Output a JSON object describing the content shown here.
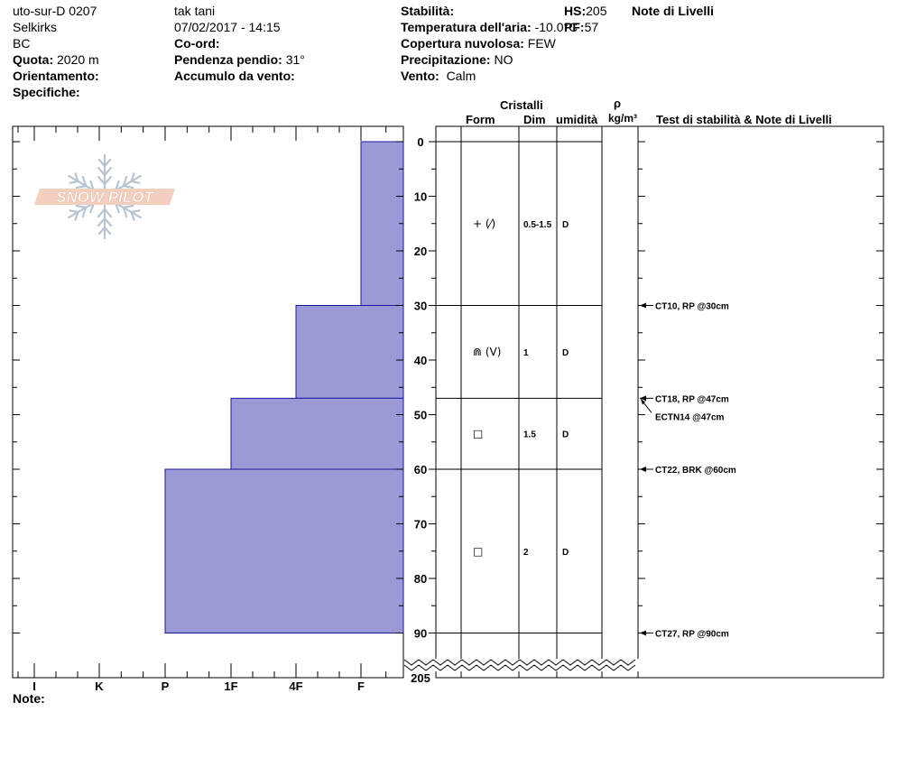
{
  "header": {
    "col1": {
      "site": "uto-sur-D 0207",
      "range": "Selkirks",
      "region": "BC",
      "quota_label": "Quota:",
      "quota_value": "2020 m",
      "orientation_label": "Orientamento:",
      "specifics_label": "Specifiche:"
    },
    "col2": {
      "observer": "tak tani",
      "datetime": "07/02/2017 - 14:15",
      "coord_label": "Co-ord:",
      "slope_label": "Pendenza pendio:",
      "slope_value": "31°",
      "wind_loading_label": "Accumulo da vento:"
    },
    "col3": {
      "stability_label": "Stabilità:",
      "air_temp_label": "Temperatura dell'aria:",
      "air_temp_value": "-10.0°C",
      "cloud_label": "Copertura nuvolosa:",
      "cloud_value": "FEW",
      "precip_label": "Precipitazione:",
      "precip_value": "NO",
      "wind_label": "Vento:",
      "wind_value": "Calm"
    },
    "col4": {
      "hs_label": "HS:",
      "hs_value": "205",
      "pf_label": "PF:",
      "pf_value": "57"
    },
    "col5": {
      "notes_label": "Note di Livelli"
    }
  },
  "logo": {
    "text": "SNOW PILOT"
  },
  "columns": {
    "cristalli": "Cristalli",
    "form": "Form",
    "dim": "Dim",
    "umidita": "umidità",
    "rho": "ρ",
    "density_unit": "kg/m³",
    "tests": "Test di stabilità & Note di Livelli"
  },
  "footer": {
    "note_label": "Note:"
  },
  "chart_data": {
    "type": "bar",
    "hardness_scale": [
      "I",
      "K",
      "P",
      "1F",
      "4F",
      "F"
    ],
    "depth_ticks": [
      0,
      10,
      20,
      30,
      40,
      50,
      60,
      70,
      80,
      90,
      205
    ],
    "depth_unit": "cm",
    "total_depth": 205,
    "layers": [
      {
        "top": 0,
        "bottom": 30,
        "hardness": "F",
        "form": "+ (⁄)",
        "dim": "0.5-1.5",
        "wet": "D"
      },
      {
        "top": 30,
        "bottom": 47,
        "hardness": "4F",
        "form": "⋒ (V)",
        "dim": "1",
        "wet": "D"
      },
      {
        "top": 47,
        "bottom": 60,
        "hardness": "1F",
        "form": "□",
        "dim": "1.5",
        "wet": "D"
      },
      {
        "top": 60,
        "bottom": 90,
        "hardness": "P",
        "form": "□",
        "dim": "2",
        "wet": "D"
      }
    ],
    "tests": [
      {
        "depth": 30,
        "label": "CT10, RP @30cm"
      },
      {
        "depth": 47,
        "label": "CT18, RP @47cm"
      },
      {
        "depth": 47,
        "label": "ECTN14 @47cm",
        "offset": true
      },
      {
        "depth": 60,
        "label": "CT22, BRK @60cm"
      },
      {
        "depth": 90,
        "label": "CT27, RP @90cm"
      }
    ],
    "colors": {
      "layer_fill": "#9c9ad6",
      "layer_stroke": "#1a1aa0"
    }
  }
}
